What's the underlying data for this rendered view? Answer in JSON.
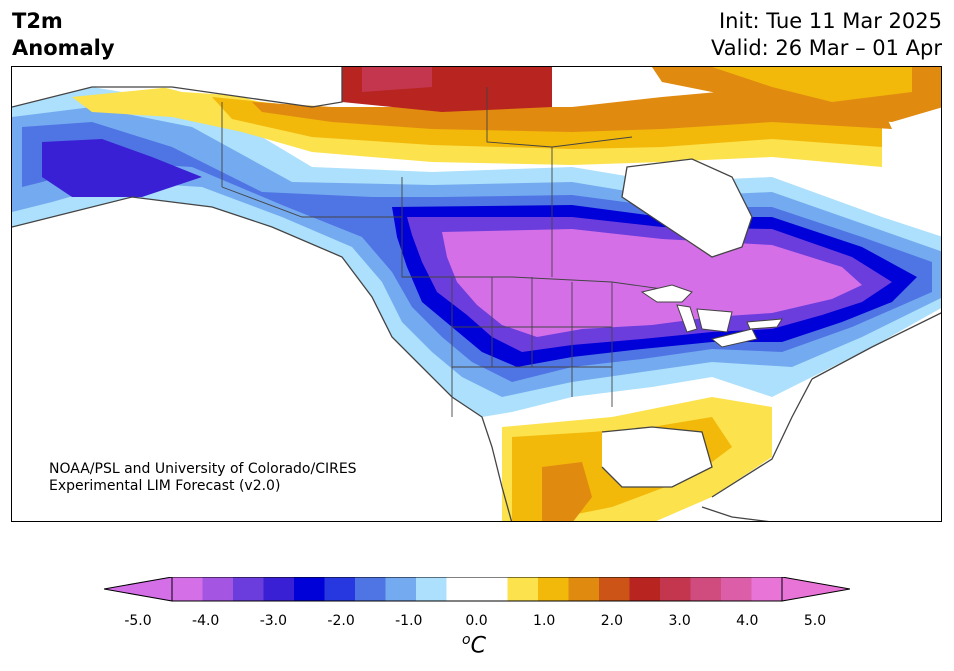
{
  "header": {
    "title_line1": "T2m",
    "title_line2": "Anomaly",
    "init": "Init: Tue 11 Mar 2025",
    "valid": "Valid: 26 Mar – 01 Apr"
  },
  "credit": {
    "line1": "NOAA/PSL and University of Colorado/CIRES",
    "line2": "Experimental LIM Forecast (v2.0)"
  },
  "colorbar": {
    "ticks": [
      "-5.0",
      "-4.0",
      "-3.0",
      "-2.0",
      "-1.0",
      "0.0",
      "1.0",
      "2.0",
      "3.0",
      "4.0",
      "5.0"
    ],
    "unit_symbol": "o",
    "unit_letter": "C",
    "colors": [
      "#d46fe8",
      "#a456e2",
      "#6c3ddd",
      "#3a20d4",
      "#0000d8",
      "#2738e0",
      "#4f74e4",
      "#74aaf0",
      "#ace0fc",
      "#ffffff",
      "#ffffff",
      "#fce24c",
      "#f2b80a",
      "#e08a10",
      "#cc5417",
      "#b8241f",
      "#c4364e",
      "#d04b7e",
      "#dc5ea8",
      "#e874d8"
    ],
    "under_color": "#d46fe8",
    "over_color": "#e874d8"
  }
}
